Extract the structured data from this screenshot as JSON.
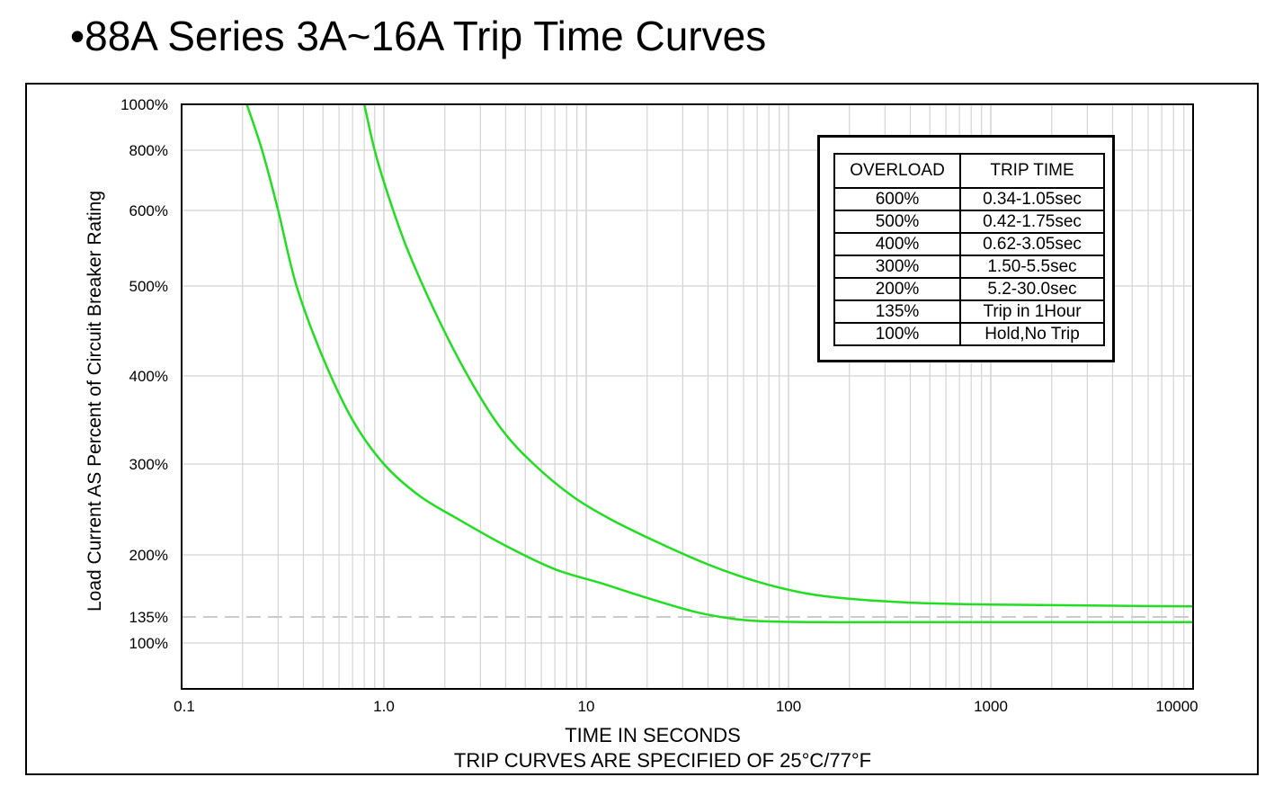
{
  "title": "•88A Series 3A~16A Trip Time Curves",
  "colors": {
    "curve": "#22dd22",
    "grid": "#d4d4d4",
    "axis": "#000000",
    "reference": "#cccccc"
  },
  "chart_data": {
    "type": "line",
    "title": "•88A Series 3A~16A Trip Time Curves",
    "xlabel": "TIME IN SECONDS",
    "subtitle": "TRIP CURVES ARE SPECIFIED OF 25°C/77°F",
    "ylabel": "Load Current AS Percent of Circuit Breaker Rating",
    "x_scale": "log",
    "xlim": [
      0.1,
      10000
    ],
    "x_ticks": [
      {
        "value": 0.1,
        "label": "0.1"
      },
      {
        "value": 1,
        "label": "1.0"
      },
      {
        "value": 10,
        "label": "10"
      },
      {
        "value": 100,
        "label": "100"
      },
      {
        "value": 1000,
        "label": "1000"
      },
      {
        "value": 10000,
        "label": "10000"
      }
    ],
    "y_ticks": [
      {
        "value": 100,
        "label": "100%"
      },
      {
        "value": 135,
        "label": "135%"
      },
      {
        "value": 200,
        "label": "200%"
      },
      {
        "value": 300,
        "label": "300%"
      },
      {
        "value": 400,
        "label": "400%"
      },
      {
        "value": 500,
        "label": "500%"
      },
      {
        "value": 600,
        "label": "600%"
      },
      {
        "value": 800,
        "label": "800%"
      },
      {
        "value": 1000,
        "label": "1000%"
      }
    ],
    "grid": true,
    "reference_line": {
      "y": 135,
      "style": "dashed"
    },
    "series": [
      {
        "name": "",
        "x": [
          0.21,
          0.25,
          0.3,
          0.37,
          0.5,
          0.7,
          1.0,
          1.5,
          2.3,
          4.0,
          7.0,
          12,
          20,
          35,
          55,
          80,
          150,
          300,
          1000,
          10000
        ],
        "y": [
          1000,
          800,
          600,
          500,
          420,
          350,
          300,
          265,
          240,
          210,
          185,
          170,
          155,
          140,
          132,
          129,
          128,
          128,
          128,
          128
        ]
      },
      {
        "name": "",
        "x": [
          0.8,
          0.9,
          1.05,
          1.3,
          1.8,
          2.6,
          3.8,
          5.5,
          8.5,
          13,
          22,
          40,
          70,
          120,
          200,
          400,
          1000,
          10000
        ],
        "y": [
          1000,
          800,
          650,
          550,
          470,
          400,
          340,
          300,
          265,
          240,
          215,
          190,
          172,
          160,
          154,
          150,
          148,
          146
        ]
      }
    ],
    "table": {
      "headers": [
        "OVERLOAD",
        "TRIP TIME"
      ],
      "rows": [
        [
          "600%",
          "0.34-1.05sec"
        ],
        [
          "500%",
          "0.42-1.75sec"
        ],
        [
          "400%",
          "0.62-3.05sec"
        ],
        [
          "300%",
          "1.50-5.5sec"
        ],
        [
          "200%",
          "5.2-30.0sec"
        ],
        [
          "135%",
          "Trip in 1Hour"
        ],
        [
          "100%",
          "Hold,No Trip"
        ]
      ]
    }
  }
}
